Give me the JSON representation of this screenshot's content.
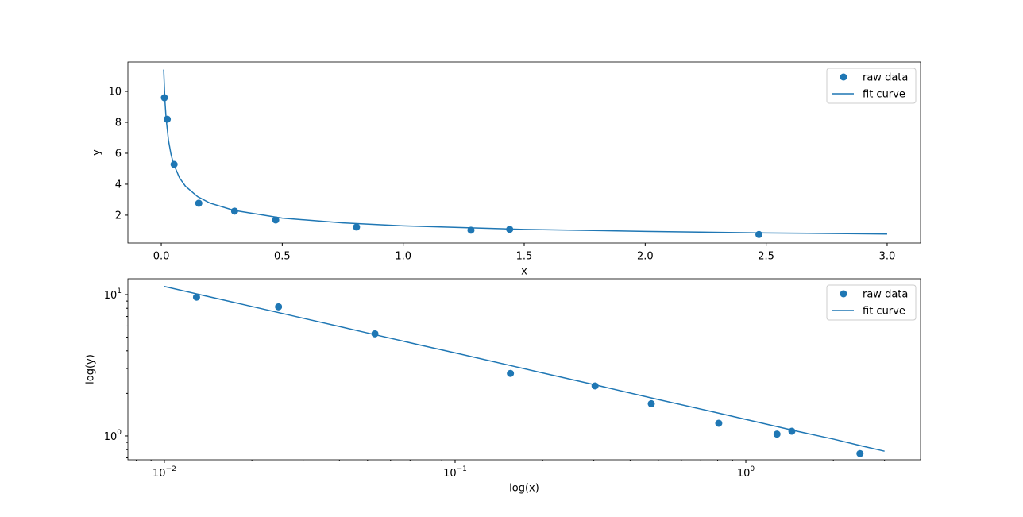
{
  "chart_data": [
    {
      "type": "scatter",
      "xlabel": "x",
      "ylabel": "y",
      "xlim": [
        -0.138,
        3.138
      ],
      "ylim": [
        0.2,
        11.9
      ],
      "xticks": [
        {
          "value": 0,
          "label": "0.0"
        },
        0.5,
        {
          "value": 1,
          "label": "1.0"
        },
        1.5,
        {
          "value": 2,
          "label": "2.0"
        },
        2.5,
        {
          "value": 3,
          "label": "3.0"
        }
      ],
      "yticks": [
        2,
        4,
        6,
        8,
        10
      ],
      "legend": "upper right",
      "series": [
        {
          "name": "raw data",
          "type": "scatter",
          "color": "#1f77b4",
          "x": [
            0.0129,
            0.0247,
            0.053,
            0.155,
            0.303,
            0.473,
            0.807,
            1.28,
            1.44,
            2.47
          ],
          "values": [
            9.59,
            8.2,
            5.28,
            2.77,
            2.26,
            1.69,
            1.23,
            1.03,
            1.08,
            0.75
          ]
        },
        {
          "name": "fit curve",
          "type": "line",
          "color": "#1f77b4",
          "x": [
            0.01,
            0.015,
            0.02,
            0.03,
            0.04,
            0.05,
            0.075,
            0.1,
            0.15,
            0.2,
            0.3,
            0.5,
            0.75,
            1,
            1.5,
            2,
            2.5,
            3
          ],
          "values": [
            11.41,
            9.43,
            8.24,
            6.81,
            5.95,
            5.35,
            4.42,
            3.87,
            3.2,
            2.79,
            2.31,
            1.81,
            1.5,
            1.31,
            1.08,
            0.95,
            0.85,
            0.78
          ]
        }
      ]
    },
    {
      "type": "scatter",
      "xlabel": "log(x)",
      "ylabel": "log(y)",
      "xscale": "log",
      "yscale": "log",
      "xlim": [
        0.00749,
        3.99
      ],
      "ylim": [
        0.678,
        12.95
      ],
      "xticks": [
        {
          "value": 0.01,
          "label": "10^−2"
        },
        {
          "value": 0.1,
          "label": "10^−1"
        },
        {
          "value": 1,
          "label": "10^0"
        }
      ],
      "yticks": [
        {
          "value": 1,
          "label": "10^0"
        },
        {
          "value": 10,
          "label": "10^1"
        }
      ],
      "xminorticks": [
        0.008,
        0.009,
        0.02,
        0.03,
        0.04,
        0.05,
        0.06,
        0.07,
        0.08,
        0.09,
        0.2,
        0.3,
        0.4,
        0.5,
        0.6,
        0.7,
        0.8,
        0.9,
        2,
        3
      ],
      "yminorticks": [
        0.7,
        0.8,
        0.9,
        2,
        3,
        4,
        5,
        6,
        7,
        8,
        9
      ],
      "legend": "upper right",
      "series": [
        {
          "name": "raw data",
          "type": "scatter",
          "color": "#1f77b4",
          "x": [
            0.0129,
            0.0247,
            0.053,
            0.155,
            0.303,
            0.473,
            0.807,
            1.28,
            1.44,
            2.47
          ],
          "values": [
            9.59,
            8.2,
            5.28,
            2.77,
            2.26,
            1.69,
            1.23,
            1.03,
            1.08,
            0.75
          ]
        },
        {
          "name": "fit curve",
          "type": "line",
          "color": "#1f77b4",
          "x": [
            0.01,
            0.015,
            0.02,
            0.03,
            0.04,
            0.05,
            0.075,
            0.1,
            0.15,
            0.2,
            0.3,
            0.5,
            0.75,
            1,
            1.5,
            2,
            2.5,
            3
          ],
          "values": [
            11.41,
            9.43,
            8.24,
            6.81,
            5.95,
            5.35,
            4.42,
            3.87,
            3.2,
            2.79,
            2.31,
            1.81,
            1.5,
            1.31,
            1.08,
            0.95,
            0.85,
            0.78
          ]
        }
      ]
    }
  ]
}
